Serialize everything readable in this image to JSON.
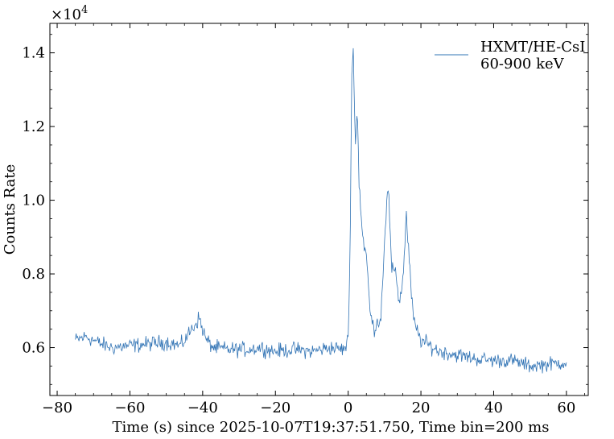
{
  "chart_data": {
    "type": "line",
    "xlabel": "Time (s) since 2025-10-07T19:37:51.750, Time bin=200 ms",
    "ylabel": "Counts Rate",
    "y_offset_label": "×10",
    "y_offset_exponent": "4",
    "xlim": [
      -82,
      66
    ],
    "ylim": [
      4700,
      14800
    ],
    "x_ticks": [
      -80,
      -60,
      -40,
      -20,
      0,
      20,
      40,
      60
    ],
    "x_tick_labels": [
      "−80",
      "−60",
      "−40",
      "−20",
      "0",
      "20",
      "40",
      "60"
    ],
    "y_ticks": [
      6000,
      8000,
      10000,
      12000,
      14000
    ],
    "y_tick_labels": [
      "0.6",
      "0.8",
      "1.0",
      "1.2",
      "1.4"
    ],
    "legend_position": "top-right",
    "grid": false,
    "series": [
      {
        "name": "HXMT/HE-CsI\n60-900 keV",
        "legend_line1": "HXMT/HE-CsI",
        "legend_line2": "60-900 keV",
        "color": "#3274b5",
        "x": [
          -75,
          -72,
          -70,
          -68,
          -65,
          -60,
          -55,
          -50,
          -46,
          -43,
          -41,
          -39,
          -37,
          -33,
          -28,
          -24,
          -20,
          -15,
          -10,
          -5,
          -1,
          0,
          0.5,
          1,
          1.5,
          2,
          2.5,
          3,
          4,
          5,
          6,
          7,
          8,
          9,
          10,
          11,
          12,
          13,
          14,
          15,
          16,
          17,
          18,
          20,
          25,
          30,
          35,
          40,
          45,
          50,
          55,
          60
        ],
        "y": [
          6200,
          6300,
          6200,
          6100,
          6000,
          6050,
          6100,
          6150,
          6050,
          6500,
          6800,
          6200,
          6000,
          5950,
          5950,
          6000,
          5900,
          5950,
          5900,
          6000,
          5950,
          6200,
          8500,
          13500,
          14000,
          11500,
          12500,
          10500,
          9000,
          8500,
          7000,
          6500,
          6700,
          6800,
          9000,
          10400,
          8000,
          8200,
          7200,
          7800,
          9600,
          8000,
          6700,
          6200,
          5900,
          5800,
          5700,
          5650,
          5650,
          5500,
          5550,
          5600
        ]
      }
    ]
  }
}
